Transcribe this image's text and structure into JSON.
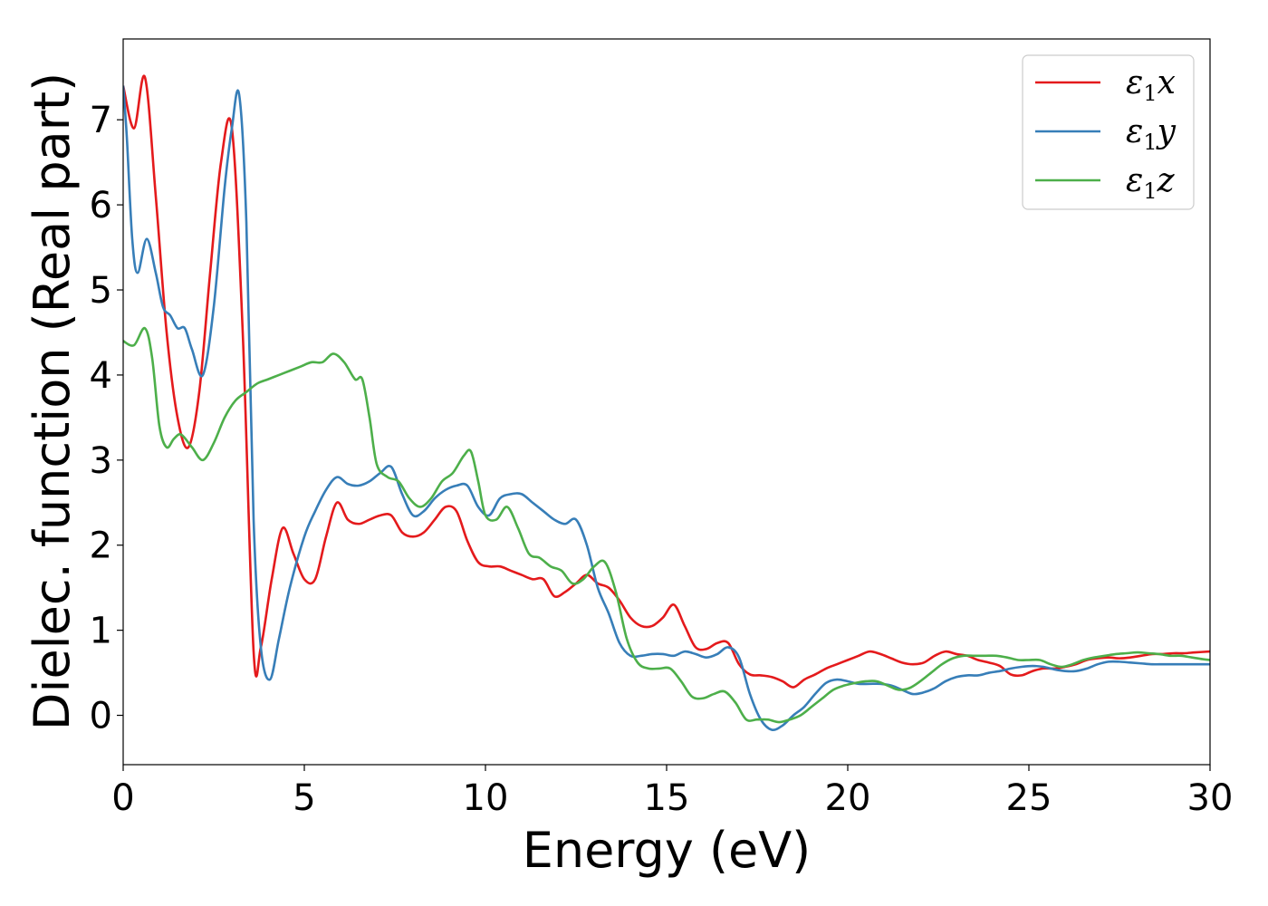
{
  "chart_data": {
    "type": "line",
    "title": "",
    "xlabel": "Energy (eV)",
    "ylabel": "Dielec. function (Real part)",
    "xlim": [
      0,
      30
    ],
    "ylim": [
      -0.58,
      7.95
    ],
    "xticks": [
      0,
      5,
      10,
      15,
      20,
      25,
      30
    ],
    "yticks": [
      0,
      1,
      2,
      3,
      4,
      5,
      6,
      7
    ],
    "xtick_labels": [
      "0",
      "5",
      "10",
      "15",
      "20",
      "25",
      "30"
    ],
    "ytick_labels": [
      "0",
      "1",
      "2",
      "3",
      "4",
      "5",
      "6",
      "7"
    ],
    "grid": false,
    "legend": "top-right",
    "series": [
      {
        "name": "ε₁x",
        "legend_main": "ε",
        "legend_sub": "1",
        "legend_var": "x",
        "color": "#e41a1c",
        "x": [
          0,
          0.3,
          0.6,
          0.9,
          1.2,
          1.5,
          1.8,
          2.1,
          2.4,
          2.7,
          3.0,
          3.3,
          3.6,
          3.8,
          4.1,
          4.4,
          4.7,
          5.0,
          5.3,
          5.6,
          5.9,
          6.2,
          6.5,
          6.8,
          7.1,
          7.4,
          7.7,
          8.0,
          8.3,
          8.6,
          8.9,
          9.2,
          9.5,
          9.8,
          10.1,
          10.4,
          10.7,
          11.0,
          11.3,
          11.6,
          11.9,
          12.2,
          12.5,
          12.8,
          13.1,
          13.4,
          13.7,
          14.0,
          14.3,
          14.6,
          14.9,
          15.2,
          15.5,
          15.8,
          16.1,
          16.4,
          16.7,
          17.0,
          17.3,
          17.6,
          17.9,
          18.2,
          18.5,
          18.8,
          19.1,
          19.4,
          19.7,
          20.0,
          20.3,
          20.6,
          20.9,
          21.2,
          21.5,
          21.8,
          22.1,
          22.4,
          22.7,
          23.0,
          23.3,
          23.6,
          23.9,
          24.2,
          24.5,
          24.8,
          25.1,
          25.4,
          25.7,
          26.0,
          26.3,
          26.6,
          26.9,
          27.2,
          27.5,
          27.8,
          28.1,
          28.4,
          28.7,
          29.0,
          29.3,
          29.6,
          30.0
        ],
        "y": [
          7.4,
          6.9,
          7.5,
          6.1,
          4.5,
          3.5,
          3.15,
          3.8,
          5.2,
          6.5,
          6.9,
          4.5,
          0.75,
          0.8,
          1.6,
          2.2,
          1.9,
          1.6,
          1.6,
          2.1,
          2.5,
          2.3,
          2.25,
          2.3,
          2.35,
          2.35,
          2.15,
          2.1,
          2.15,
          2.3,
          2.45,
          2.4,
          2.05,
          1.8,
          1.75,
          1.75,
          1.7,
          1.65,
          1.6,
          1.6,
          1.4,
          1.45,
          1.55,
          1.65,
          1.55,
          1.5,
          1.35,
          1.15,
          1.05,
          1.05,
          1.15,
          1.3,
          1.05,
          0.8,
          0.78,
          0.85,
          0.85,
          0.6,
          0.48,
          0.47,
          0.45,
          0.4,
          0.33,
          0.42,
          0.48,
          0.55,
          0.6,
          0.65,
          0.7,
          0.75,
          0.72,
          0.67,
          0.62,
          0.6,
          0.62,
          0.7,
          0.75,
          0.72,
          0.7,
          0.65,
          0.62,
          0.58,
          0.48,
          0.47,
          0.52,
          0.55,
          0.55,
          0.57,
          0.6,
          0.65,
          0.67,
          0.68,
          0.67,
          0.68,
          0.7,
          0.72,
          0.72,
          0.73,
          0.73,
          0.74,
          0.75
        ]
      },
      {
        "name": "ε₁y",
        "legend_main": "ε",
        "legend_sub": "1",
        "legend_var": "y",
        "color": "#377eb8",
        "x": [
          0,
          0.1,
          0.25,
          0.4,
          0.65,
          0.9,
          1.1,
          1.3,
          1.5,
          1.7,
          1.9,
          2.2,
          2.5,
          2.8,
          3.0,
          3.2,
          3.4,
          3.6,
          3.8,
          4.05,
          4.3,
          4.6,
          5.0,
          5.3,
          5.6,
          5.9,
          6.2,
          6.5,
          6.8,
          7.1,
          7.4,
          7.7,
          8.0,
          8.3,
          8.6,
          8.9,
          9.2,
          9.5,
          9.8,
          10.1,
          10.4,
          10.7,
          11.0,
          11.3,
          11.6,
          11.9,
          12.2,
          12.5,
          12.8,
          13.1,
          13.4,
          13.7,
          14.0,
          14.3,
          14.6,
          14.9,
          15.2,
          15.5,
          15.8,
          16.1,
          16.4,
          16.7,
          17.0,
          17.3,
          17.6,
          17.9,
          18.2,
          18.5,
          18.8,
          19.1,
          19.4,
          19.7,
          20.0,
          20.3,
          20.6,
          20.9,
          21.2,
          21.5,
          21.8,
          22.1,
          22.4,
          22.7,
          23.0,
          23.3,
          23.6,
          23.9,
          24.2,
          24.5,
          24.8,
          25.1,
          25.4,
          25.7,
          26.0,
          26.3,
          26.6,
          26.9,
          27.2,
          27.5,
          27.8,
          28.1,
          28.4,
          28.7,
          29.0,
          29.3,
          29.6,
          30.0
        ],
        "y": [
          7.4,
          6.8,
          5.6,
          5.2,
          5.6,
          5.2,
          4.8,
          4.7,
          4.55,
          4.55,
          4.3,
          4.0,
          4.8,
          6.2,
          6.9,
          7.3,
          5.8,
          2.3,
          0.8,
          0.42,
          0.9,
          1.5,
          2.1,
          2.4,
          2.65,
          2.8,
          2.72,
          2.7,
          2.75,
          2.85,
          2.92,
          2.6,
          2.35,
          2.4,
          2.55,
          2.65,
          2.7,
          2.7,
          2.45,
          2.35,
          2.55,
          2.6,
          2.6,
          2.5,
          2.4,
          2.3,
          2.25,
          2.3,
          2.0,
          1.5,
          1.2,
          0.85,
          0.7,
          0.7,
          0.72,
          0.72,
          0.7,
          0.75,
          0.72,
          0.68,
          0.72,
          0.8,
          0.68,
          0.25,
          -0.05,
          -0.17,
          -0.12,
          0.0,
          0.1,
          0.25,
          0.38,
          0.42,
          0.4,
          0.37,
          0.37,
          0.37,
          0.35,
          0.3,
          0.25,
          0.27,
          0.32,
          0.4,
          0.45,
          0.47,
          0.47,
          0.5,
          0.52,
          0.55,
          0.57,
          0.58,
          0.57,
          0.54,
          0.52,
          0.52,
          0.55,
          0.6,
          0.63,
          0.63,
          0.62,
          0.61,
          0.6,
          0.6,
          0.6,
          0.6,
          0.6,
          0.6
        ]
      },
      {
        "name": "ε₁z",
        "legend_main": "ε",
        "legend_sub": "1",
        "legend_var": "z",
        "color": "#4daf4a",
        "x": [
          0,
          0.3,
          0.6,
          0.8,
          1.0,
          1.2,
          1.4,
          1.6,
          1.9,
          2.2,
          2.5,
          2.8,
          3.1,
          3.4,
          3.7,
          4.0,
          4.3,
          4.6,
          4.9,
          5.2,
          5.5,
          5.8,
          6.1,
          6.4,
          6.6,
          6.8,
          7.0,
          7.3,
          7.6,
          7.9,
          8.2,
          8.5,
          8.8,
          9.1,
          9.4,
          9.6,
          9.8,
          10.0,
          10.3,
          10.6,
          10.9,
          11.2,
          11.5,
          11.8,
          12.1,
          12.4,
          12.7,
          13.0,
          13.3,
          13.6,
          13.9,
          14.2,
          14.5,
          14.8,
          15.1,
          15.4,
          15.7,
          16.0,
          16.3,
          16.6,
          16.9,
          17.2,
          17.5,
          17.8,
          18.1,
          18.4,
          18.7,
          19.0,
          19.3,
          19.6,
          19.9,
          20.2,
          20.5,
          20.8,
          21.1,
          21.4,
          21.7,
          22.0,
          22.3,
          22.6,
          22.9,
          23.2,
          23.5,
          23.8,
          24.1,
          24.4,
          24.7,
          25.0,
          25.3,
          25.6,
          25.9,
          26.2,
          26.5,
          26.8,
          27.1,
          27.4,
          27.7,
          28.0,
          28.3,
          28.6,
          28.9,
          29.2,
          29.5,
          29.8,
          30.0
        ],
        "y": [
          4.4,
          4.35,
          4.55,
          4.2,
          3.4,
          3.15,
          3.25,
          3.3,
          3.15,
          3.0,
          3.2,
          3.5,
          3.7,
          3.8,
          3.9,
          3.95,
          4.0,
          4.05,
          4.1,
          4.15,
          4.15,
          4.25,
          4.15,
          3.95,
          3.95,
          3.5,
          2.95,
          2.8,
          2.75,
          2.55,
          2.45,
          2.55,
          2.75,
          2.85,
          3.05,
          3.1,
          2.75,
          2.35,
          2.3,
          2.45,
          2.2,
          1.9,
          1.85,
          1.75,
          1.7,
          1.55,
          1.6,
          1.75,
          1.8,
          1.45,
          0.9,
          0.62,
          0.55,
          0.55,
          0.55,
          0.4,
          0.22,
          0.2,
          0.25,
          0.28,
          0.15,
          -0.05,
          -0.05,
          -0.05,
          -0.08,
          -0.05,
          0.0,
          0.1,
          0.2,
          0.3,
          0.35,
          0.38,
          0.4,
          0.4,
          0.35,
          0.3,
          0.32,
          0.4,
          0.5,
          0.6,
          0.67,
          0.7,
          0.7,
          0.7,
          0.7,
          0.68,
          0.65,
          0.65,
          0.65,
          0.6,
          0.57,
          0.6,
          0.65,
          0.68,
          0.7,
          0.72,
          0.73,
          0.74,
          0.73,
          0.72,
          0.7,
          0.7,
          0.68,
          0.66,
          0.65
        ]
      }
    ]
  }
}
